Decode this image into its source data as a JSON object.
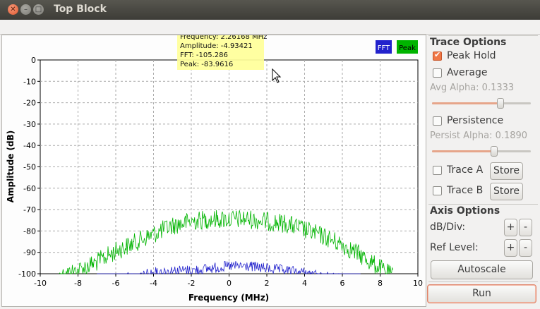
{
  "window": {
    "title": "Top Block"
  },
  "plot": {
    "legend": {
      "fft": "FFT",
      "peak": "Peak"
    },
    "tooltip": [
      "Frequency: 2.26168 MHz",
      "Amplitude: -4.93421",
      "FFT: -105.286",
      "Peak: -83.9616"
    ],
    "colors": {
      "fft": "#2222cc",
      "peak": "#00b400",
      "tooltip": "#ffff99"
    }
  },
  "chart_data": {
    "type": "line",
    "xlabel": "Frequency (MHz)",
    "ylabel": "Amplitude (dB)",
    "xlim": [
      -10,
      10
    ],
    "ylim": [
      -100,
      0
    ],
    "xticks": [
      "-10",
      "-8",
      "-6",
      "-4",
      "-2",
      "0",
      "2",
      "4",
      "6",
      "8",
      "10"
    ],
    "yticks": [
      "0",
      "-10",
      "-20",
      "-30",
      "-40",
      "-50",
      "-60",
      "-70",
      "-80",
      "-90",
      "-100"
    ],
    "grid": true,
    "legend": "top-right",
    "series": [
      {
        "name": "Peak",
        "color": "#00b400",
        "x": [
          -9.0,
          -8.0,
          -7.0,
          -6.0,
          -5.0,
          -4.0,
          -3.0,
          -2.0,
          -1.0,
          0.0,
          1.0,
          2.0,
          3.0,
          4.0,
          5.0,
          6.0,
          7.0,
          8.0,
          8.7
        ],
        "y": [
          -100,
          -97,
          -93,
          -88,
          -84,
          -80,
          -76,
          -74,
          -73,
          -73,
          -73,
          -74,
          -75,
          -78,
          -81,
          -85,
          -90,
          -96,
          -100
        ]
      },
      {
        "name": "FFT",
        "color": "#2222cc",
        "x": [
          -7.0,
          -6.0,
          -5.0,
          -4.0,
          -3.0,
          -2.0,
          -1.0,
          0.0,
          1.0,
          2.0,
          3.0,
          4.0,
          5.0,
          6.0,
          7.0
        ],
        "y": [
          -100,
          -100,
          -99,
          -97,
          -96,
          -96,
          -95,
          -94,
          -94,
          -95,
          -96,
          -97,
          -99,
          -100,
          -100
        ]
      }
    ]
  },
  "trace_options": {
    "title": "Trace Options",
    "peak_hold": {
      "label": "Peak Hold",
      "checked": true
    },
    "average": {
      "label": "Average",
      "checked": false
    },
    "avg_alpha_label": "Avg Alpha: 0.1333",
    "avg_alpha_level": 0.69,
    "persistence": {
      "label": "Persistence",
      "checked": false
    },
    "persist_alpha_label": "Persist Alpha: 0.1890",
    "persist_alpha_level": 0.63,
    "trace_a": {
      "label": "Trace A",
      "store": "Store"
    },
    "trace_b": {
      "label": "Trace B",
      "store": "Store"
    }
  },
  "axis_options": {
    "title": "Axis Options",
    "db_div_label": "dB/Div:",
    "ref_level_label": "Ref Level:",
    "plus": "+",
    "minus": "-",
    "autoscale": "Autoscale"
  },
  "run_button": "Run"
}
